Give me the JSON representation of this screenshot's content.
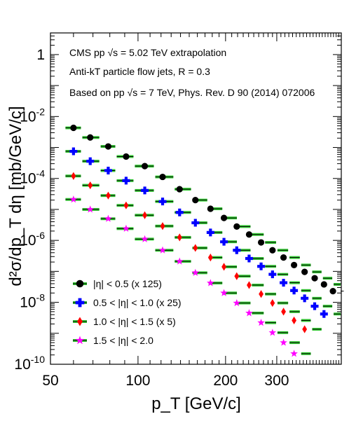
{
  "chart_data": {
    "type": "scatter",
    "title": "",
    "xlabel": "p_T [GeV/c]",
    "ylabel": "d²σ/dp_T dη [mb/GeV/c]",
    "xscale": "log",
    "yscale": "log",
    "xlim": [
      50,
      500
    ],
    "ylim": [
      1e-10,
      5
    ],
    "xticks": [
      {
        "value": 50,
        "label": "50"
      },
      {
        "value": 100,
        "label": "100"
      },
      {
        "value": 200,
        "label": "200"
      },
      {
        "value": 300,
        "label": "300"
      }
    ],
    "yticks": [
      {
        "value": 1,
        "base": "1",
        "exp": ""
      },
      {
        "value": 0.01,
        "base": "10",
        "exp": "-2"
      },
      {
        "value": 0.0001,
        "base": "10",
        "exp": "-4"
      },
      {
        "value": 1e-06,
        "base": "10",
        "exp": "-6"
      },
      {
        "value": 1e-08,
        "base": "10",
        "exp": "-8"
      },
      {
        "value": 1e-10,
        "base": "10",
        "exp": "-10"
      }
    ],
    "annotations": [
      "CMS pp √s = 5.02 TeV extrapolation",
      "Anti-kT particle flow jets, R = 0.3",
      "Based on pp √s = 7 TeV, Phys. Rev. D 90 (2014) 072006"
    ],
    "legend_position": "bottom-left",
    "error_band_color": "#33cc33",
    "series": [
      {
        "name": "|η| < 0.5 (x 125)",
        "marker": "circle",
        "color": "#000000",
        "x": [
          60,
          68.5,
          79,
          91,
          105.5,
          121.5,
          139,
          157.5,
          177.5,
          197.5,
          218.5,
          241,
          265,
          290,
          316.5,
          344,
          374,
          405,
          436,
          468
        ],
        "xlow": [
          56,
          64,
          74,
          84,
          97,
          114,
          133,
          153,
          174,
          196,
          220,
          245,
          272,
          300,
          330,
          362,
          395,
          430,
          468,
          507
        ],
        "xhigh": [
          64,
          74,
          84,
          97,
          114,
          133,
          153,
          174,
          196,
          220,
          245,
          272,
          300,
          330,
          362,
          395,
          430,
          468,
          507,
          548
        ],
        "y": [
          0.0043,
          0.0021,
          0.00108,
          0.00051,
          0.00025,
          0.000112,
          4.5e-05,
          2e-05,
          1.05e-05,
          5.3e-06,
          2.8e-06,
          1.55e-06,
          8.6e-07,
          4.8e-07,
          2.8e-07,
          1.6e-07,
          9.6e-08,
          6e-08,
          3.8e-08,
          2.3e-08
        ]
      },
      {
        "name": "0.5 < |η| < 1.0 (x 25)",
        "marker": "cross",
        "color": "#0000ff",
        "x": [
          60,
          68.5,
          79,
          91,
          105.5,
          121.5,
          139,
          157.5,
          177.5,
          197.5,
          218.5,
          241,
          265,
          290,
          316.5,
          344,
          374,
          405,
          436
        ],
        "xlow": [
          56,
          64,
          74,
          84,
          97,
          114,
          133,
          153,
          174,
          196,
          220,
          245,
          272,
          300,
          330,
          362,
          395,
          430,
          468
        ],
        "xhigh": [
          64,
          74,
          84,
          97,
          114,
          133,
          153,
          174,
          196,
          220,
          245,
          272,
          300,
          330,
          362,
          395,
          430,
          468,
          507
        ],
        "y": [
          0.00075,
          0.00036,
          0.00018,
          8.5e-05,
          4.1e-05,
          1.8e-05,
          8e-06,
          3.7e-06,
          1.8e-06,
          9e-07,
          4.8e-07,
          2.6e-07,
          1.45e-07,
          8e-08,
          4.3e-08,
          2.4e-08,
          1.35e-08,
          7.5e-09,
          4.2e-09
        ]
      },
      {
        "name": "1.0 < |η| < 1.5 (x 5)",
        "marker": "diamond",
        "color": "#ff0000",
        "x": [
          60,
          68.5,
          79,
          91,
          105.5,
          121.5,
          139,
          157.5,
          177.5,
          197.5,
          218.5,
          241,
          265,
          290,
          316.5,
          344,
          374
        ],
        "xlow": [
          56,
          64,
          74,
          84,
          97,
          114,
          133,
          153,
          174,
          196,
          220,
          245,
          272,
          300,
          330,
          362,
          395
        ],
        "xhigh": [
          64,
          74,
          84,
          97,
          114,
          133,
          153,
          174,
          196,
          220,
          245,
          272,
          300,
          330,
          362,
          395,
          430
        ],
        "y": [
          0.00012,
          6e-05,
          2.8e-05,
          1.35e-05,
          6.5e-06,
          2.9e-06,
          1.25e-06,
          5.7e-07,
          2.8e-07,
          1.4e-07,
          7e-08,
          3.6e-08,
          1.85e-08,
          9.5e-09,
          5e-09,
          2.6e-09,
          1.35e-09
        ]
      },
      {
        "name": "1.5 < |η| < 2.0",
        "marker": "star",
        "color": "#ff00ff",
        "x": [
          60,
          68.5,
          79,
          91,
          105.5,
          121.5,
          139,
          157.5,
          177.5,
          197.5,
          218.5,
          241,
          265,
          290,
          316.5,
          344
        ],
        "xlow": [
          56,
          64,
          74,
          84,
          97,
          114,
          133,
          153,
          174,
          196,
          220,
          245,
          272,
          300,
          330,
          362
        ],
        "xhigh": [
          64,
          74,
          84,
          97,
          114,
          133,
          153,
          174,
          196,
          220,
          245,
          272,
          300,
          330,
          362,
          395
        ],
        "y": [
          2.1e-05,
          1e-05,
          5e-06,
          2.4e-06,
          1.1e-06,
          4.8e-07,
          2.1e-07,
          9e-08,
          4.2e-08,
          2e-08,
          9.5e-09,
          4.5e-09,
          2.2e-09,
          1.05e-09,
          5e-10,
          2.2e-10
        ]
      }
    ]
  }
}
